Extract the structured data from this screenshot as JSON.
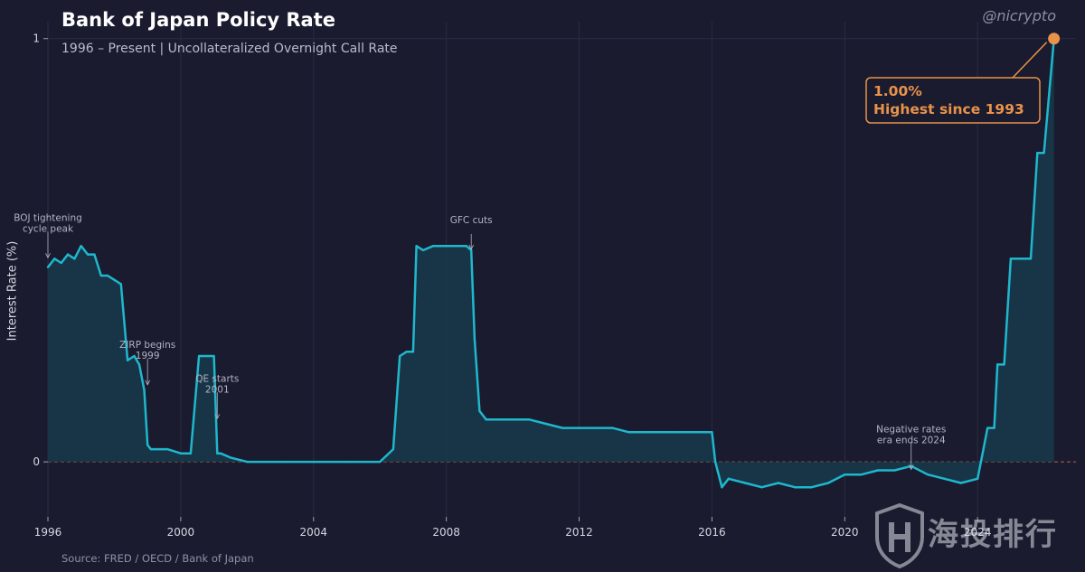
{
  "title": "Bank of Japan Policy Rate",
  "subtitle": "1996 – Present | Uncollateralized Overnight Call Rate",
  "handle": "@nicrypto",
  "source": "Source: FRED / OECD / Bank of Japan",
  "watermark": {
    "text": "海投排行",
    "icon": "shield-logo-icon"
  },
  "colors": {
    "background": "#1a1b2e",
    "line": "#1fb7cc",
    "fill": "#17384a",
    "accent": "#e8924a",
    "zero_line": "#c87a5a",
    "annotation": "#b0b4c4"
  },
  "chart_data": {
    "type": "line",
    "ylabel": "Interest Rate (%)",
    "xlabel": "",
    "xlim": [
      1996,
      2026.5
    ],
    "ylim": [
      -0.13,
      1.04
    ],
    "x_ticks": [
      1996,
      2000,
      2004,
      2008,
      2012,
      2016,
      2020,
      2024
    ],
    "x_tick_labels": [
      "1996",
      "2000",
      "2004",
      "2008",
      "2012",
      "2016",
      "2020",
      "2024"
    ],
    "y_ticks": [
      0,
      1
    ],
    "y_tick_labels": [
      "0",
      "1"
    ],
    "grid": true,
    "zero_reference_line": true,
    "series": [
      {
        "x": [
          1996.0,
          1996.2,
          1996.4,
          1996.6,
          1996.8,
          1997.0,
          1997.2,
          1997.4,
          1997.6,
          1997.8,
          1998.0,
          1998.2,
          1998.4,
          1998.6,
          1998.75,
          1998.9,
          1999.0,
          1999.1,
          1999.3,
          1999.6,
          2000.0,
          2000.3,
          2000.55,
          2000.6,
          2000.8,
          2001.0,
          2001.1,
          2001.2,
          2001.5,
          2002.0,
          2003.0,
          2004.0,
          2005.0,
          2006.0,
          2006.4,
          2006.6,
          2006.8,
          2007.0,
          2007.1,
          2007.3,
          2007.6,
          2008.0,
          2008.3,
          2008.6,
          2008.75,
          2008.85,
          2009.0,
          2009.2,
          2010.0,
          2010.5,
          2011.0,
          2011.5,
          2012.0,
          2012.5,
          2013.0,
          2013.5,
          2014.0,
          2014.5,
          2015.0,
          2015.5,
          2016.0,
          2016.1,
          2016.3,
          2016.5,
          2017.0,
          2017.5,
          2018.0,
          2018.5,
          2019.0,
          2019.5,
          2020.0,
          2020.5,
          2021.0,
          2021.5,
          2022.0,
          2022.5,
          2023.0,
          2023.5,
          2024.0,
          2024.1,
          2024.3,
          2024.5,
          2024.6,
          2024.8,
          2025.0,
          2025.1,
          2025.5,
          2025.6,
          2025.8,
          2026.0,
          2026.3
        ],
        "values": [
          0.46,
          0.48,
          0.47,
          0.49,
          0.48,
          0.51,
          0.49,
          0.49,
          0.44,
          0.44,
          0.43,
          0.42,
          0.24,
          0.25,
          0.23,
          0.17,
          0.04,
          0.03,
          0.03,
          0.03,
          0.02,
          0.02,
          0.25,
          0.25,
          0.25,
          0.25,
          0.02,
          0.02,
          0.01,
          0.0,
          0.0,
          0.0,
          0.0,
          0.0,
          0.03,
          0.25,
          0.26,
          0.26,
          0.51,
          0.5,
          0.51,
          0.51,
          0.51,
          0.51,
          0.5,
          0.29,
          0.12,
          0.1,
          0.1,
          0.1,
          0.09,
          0.08,
          0.08,
          0.08,
          0.08,
          0.07,
          0.07,
          0.07,
          0.07,
          0.07,
          0.07,
          0.0,
          -0.06,
          -0.04,
          -0.05,
          -0.06,
          -0.05,
          -0.06,
          -0.06,
          -0.05,
          -0.03,
          -0.03,
          -0.02,
          -0.02,
          -0.01,
          -0.03,
          -0.04,
          -0.05,
          -0.04,
          0.0,
          0.08,
          0.08,
          0.23,
          0.23,
          0.48,
          0.48,
          0.48,
          0.48,
          0.73,
          0.73,
          1.0
        ]
      }
    ],
    "highlight_point": {
      "x": 2026.3,
      "y": 1.0
    },
    "annotations": [
      {
        "lines": [
          "BOJ tightening",
          "cycle peak"
        ],
        "x": 1996.0,
        "y": 0.48
      },
      {
        "lines": [
          "ZIRP begins",
          "1999"
        ],
        "x": 1999.0,
        "y": 0.18
      },
      {
        "lines": [
          "QE starts",
          "2001"
        ],
        "x": 2001.1,
        "y": 0.1
      },
      {
        "lines": [
          "GFC cuts"
        ],
        "x": 2008.75,
        "y": 0.5
      },
      {
        "lines": [
          "Negative rates",
          "era ends 2024"
        ],
        "x": 2022.0,
        "y": -0.02
      }
    ],
    "callout": {
      "lines": [
        "1.00%",
        "Highest since 1993"
      ]
    }
  }
}
